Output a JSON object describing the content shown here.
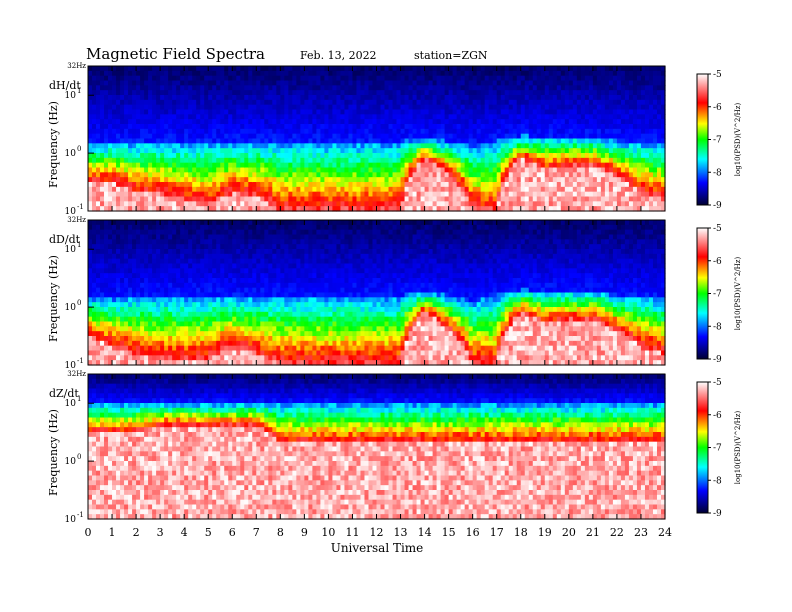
{
  "header": {
    "title": "Magnetic  Field  Spectra",
    "date": "Feb. 13, 2022",
    "station": "station=ZGN"
  },
  "chart_data": {
    "type": "heatmap",
    "xlabel": "Universal Time",
    "x_ticks": [
      "0",
      "1",
      "2",
      "3",
      "4",
      "5",
      "6",
      "7",
      "8",
      "9",
      "10",
      "11",
      "12",
      "13",
      "14",
      "15",
      "16",
      "17",
      "18",
      "19",
      "20",
      "21",
      "22",
      "23",
      "24"
    ],
    "xlim": [
      0,
      24
    ],
    "y_scale": "log",
    "ylim": [
      0.1,
      32
    ],
    "y_top_label": "32Hz",
    "y_ticks": [
      {
        "value": 10,
        "base": "10",
        "exp": "1"
      },
      {
        "value": 1,
        "base": "10",
        "exp": "0"
      },
      {
        "value": 0.1,
        "base": "10",
        "exp": "-1"
      }
    ],
    "colorbar": {
      "ticks": [
        "-5",
        "-6",
        "-7",
        "-8",
        "-9"
      ],
      "range": [
        -9,
        -5
      ],
      "label": "log10(PSD)(V^2/Hz)",
      "colors": [
        "#000033",
        "#0000ff",
        "#00ffff",
        "#00ff00",
        "#ffff00",
        "#ff0000",
        "#ffffff"
      ]
    },
    "panels": [
      {
        "name": "dH/dt",
        "ylabel": "Frequency (Hz)",
        "background_cutoff_hz": [
          1.5,
          1.5,
          1.6,
          1.6,
          1.6,
          1.6,
          1.6,
          1.6,
          1.6,
          1.6,
          1.6,
          1.6,
          1.6,
          1.6,
          1.8,
          1.6,
          1.3,
          1.6,
          2.0,
          1.9,
          1.9,
          1.9,
          1.6,
          1.6,
          1.4
        ],
        "saturated_below_hz": [
          0.3,
          0.3,
          0.2,
          0.2,
          0.15,
          0.12,
          0.2,
          0.18,
          0.1,
          0.1,
          0.1,
          0.1,
          0.1,
          0.1,
          0.8,
          0.4,
          0.1,
          0.1,
          0.8,
          0.5,
          0.6,
          0.6,
          0.4,
          0.2,
          0.15
        ]
      },
      {
        "name": "dD/dt",
        "ylabel": "Frequency (Hz)",
        "background_cutoff_hz": [
          1.5,
          1.4,
          1.6,
          1.6,
          1.6,
          1.6,
          1.6,
          1.6,
          1.6,
          1.6,
          1.6,
          1.6,
          1.6,
          1.6,
          1.8,
          1.6,
          1.3,
          1.6,
          2.0,
          1.9,
          1.9,
          1.9,
          1.6,
          1.6,
          1.4
        ],
        "saturated_below_hz": [
          0.3,
          0.2,
          0.15,
          0.12,
          0.12,
          0.12,
          0.2,
          0.15,
          0.1,
          0.1,
          0.1,
          0.1,
          0.1,
          0.1,
          0.8,
          0.4,
          0.1,
          0.1,
          0.8,
          0.5,
          0.6,
          0.6,
          0.4,
          0.2,
          0.15
        ]
      },
      {
        "name": "dZ/dt",
        "ylabel": "Frequency (Hz)",
        "background_cutoff_hz": [
          10,
          10,
          10,
          10,
          10,
          10,
          10,
          10,
          10,
          10,
          10,
          10,
          10,
          10,
          10,
          10,
          10,
          10,
          10,
          10,
          10,
          10,
          10,
          10,
          10
        ],
        "saturated_below_hz": [
          3,
          3,
          3,
          4,
          4,
          4,
          4,
          4,
          2,
          2,
          2,
          2,
          2,
          2,
          2,
          2,
          2,
          2,
          2,
          2,
          2,
          2,
          2,
          2,
          2
        ]
      }
    ]
  }
}
